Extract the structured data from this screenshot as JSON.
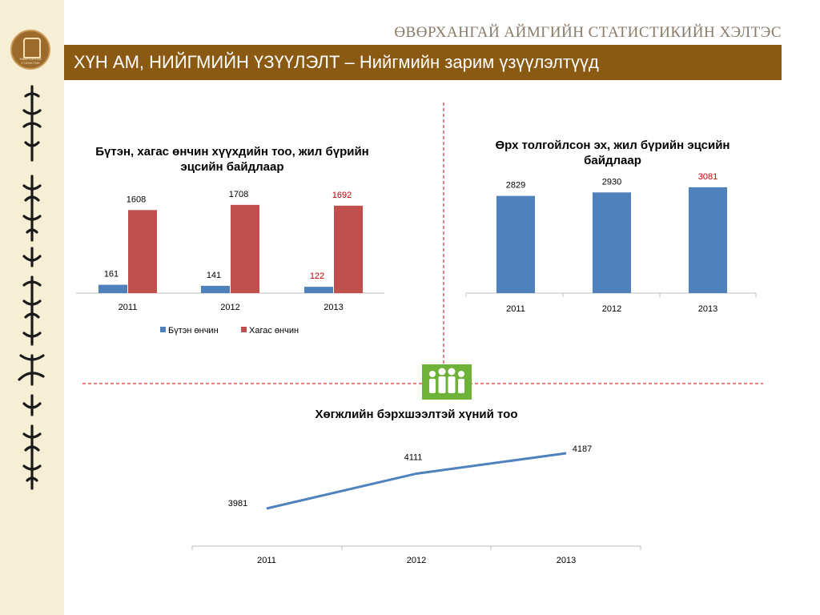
{
  "header": {
    "org_name": "ӨВӨРХАНГАЙ АЙМГИЙН СТАТИСТИКИЙН ХЭЛТЭС",
    "title": "ХҮН АМ, НИЙГМИЙН ҮЗҮҮЛЭЛТ – Нийгмийн зарим үзүүлэлтүүд",
    "logo_text": "ӨВӨРХАНГАЙ СТАТИСТИК"
  },
  "colors": {
    "banner": "#8b5a12",
    "blue": "#4f81bd",
    "red": "#c0504d",
    "highlight": "#c00000",
    "icon": "#6fb23a"
  },
  "chart_data": [
    {
      "type": "bar",
      "title": "Бүтэн, хагас өнчин хүүхдийн тоо, жил бүрийн эцсийн байдлаар",
      "categories": [
        "2011",
        "2012",
        "2013"
      ],
      "series": [
        {
          "name": "Бүтэн өнчин",
          "values": [
            161,
            141,
            122
          ]
        },
        {
          "name": "Хагас өнчин",
          "values": [
            1608,
            1708,
            1692
          ]
        }
      ],
      "legend": "bottom"
    },
    {
      "type": "bar",
      "title": "Өрх толгойлсон эх, жил бүрийн эцсийн байдлаар",
      "categories": [
        "2011",
        "2012",
        "2013"
      ],
      "values": [
        2829,
        2930,
        3081
      ]
    },
    {
      "type": "line",
      "title": "Хөгжлийн бэрхшээлтэй хүний тоо",
      "categories": [
        "2011",
        "2012",
        "2013"
      ],
      "values": [
        3981,
        4111,
        4187
      ]
    }
  ]
}
